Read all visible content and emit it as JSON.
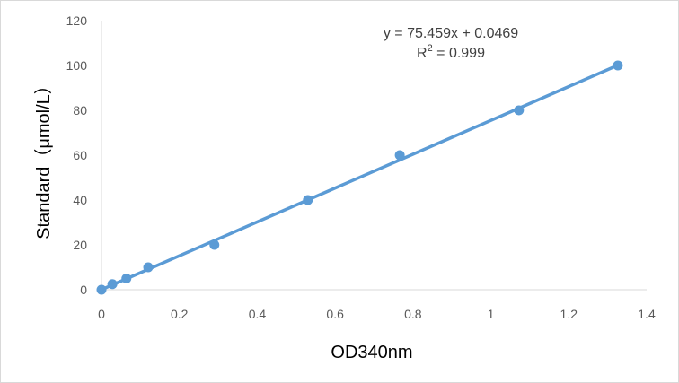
{
  "chart_data": {
    "type": "scatter",
    "xlabel": "OD340nm",
    "ylabel": "Standard（μmol/L）",
    "xlim": [
      0,
      1.4
    ],
    "ylim": [
      0,
      120
    ],
    "x_ticks": [
      "0",
      "0.2",
      "0.4",
      "0.6",
      "0.8",
      "1",
      "1.2",
      "1.4"
    ],
    "y_ticks": [
      "0",
      "20",
      "40",
      "60",
      "80",
      "100",
      "120"
    ],
    "grid": false,
    "series": [
      {
        "x": [
          0,
          0.028,
          0.064,
          0.12,
          0.29,
          0.53,
          0.766,
          1.072,
          1.326
        ],
        "y": [
          0,
          2.5,
          5,
          10,
          20,
          40,
          60,
          80,
          100
        ],
        "color": "#5b9bd5"
      }
    ],
    "trendline": {
      "slope": 75.459,
      "intercept": 0.0469,
      "color": "#5b9bd5"
    },
    "annotations": {
      "equation": "y = 75.459x + 0.0469",
      "r2_label": "R",
      "r2_sup": "2",
      "r2_value": " = 0.999"
    }
  }
}
